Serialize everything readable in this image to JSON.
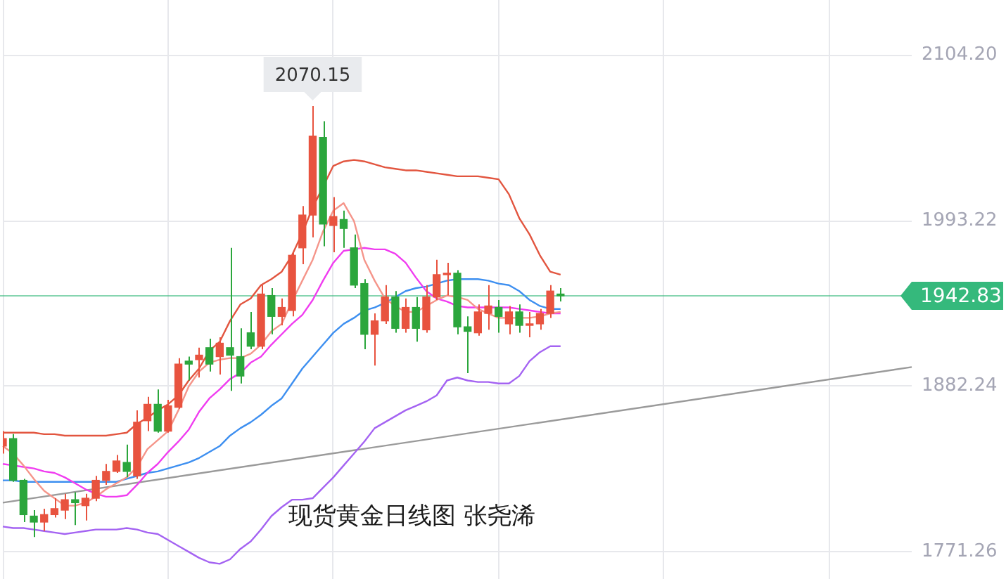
{
  "chart_data": {
    "type": "candlestick",
    "title": "现货黄金日线图 张尧浠",
    "categories": [
      null,
      null,
      null,
      null,
      null,
      null,
      null,
      null,
      null,
      null,
      null,
      null,
      null,
      null,
      null,
      null,
      null,
      null,
      null,
      null,
      null,
      null,
      null,
      null,
      null,
      null,
      null,
      null,
      null,
      null,
      null,
      null,
      null,
      null,
      null,
      null,
      null,
      null,
      null,
      null,
      null,
      null,
      null,
      null,
      null,
      null,
      null,
      null,
      null,
      null,
      null,
      null,
      null,
      null,
      null,
      null,
      null,
      null,
      null,
      null,
      null,
      null,
      null,
      null,
      null,
      null,
      null,
      null,
      null,
      null,
      null,
      null,
      null,
      null,
      null,
      null,
      null,
      null,
      null,
      null,
      null,
      null,
      null,
      null,
      null,
      null,
      null,
      null,
      null
    ],
    "ohlc": [
      [
        1842,
        1852,
        1837,
        1847
      ],
      [
        1847,
        1850,
        1818,
        1819
      ],
      [
        1819,
        1820,
        1791,
        1796
      ],
      [
        1795,
        1799,
        1781,
        1791
      ],
      [
        1791,
        1800,
        1785,
        1796
      ],
      [
        1796,
        1807,
        1794,
        1800
      ],
      [
        1799,
        1810,
        1793,
        1806
      ],
      [
        1806,
        1811,
        1789,
        1804
      ],
      [
        1802,
        1810,
        1792,
        1807
      ],
      [
        1807,
        1822,
        1805,
        1819
      ],
      [
        1819,
        1830,
        1816,
        1825
      ],
      [
        1825,
        1836,
        1824,
        1832
      ],
      [
        1831,
        1843,
        1821,
        1825
      ],
      [
        1822,
        1866,
        1820,
        1858
      ],
      [
        1859,
        1875,
        1852,
        1870
      ],
      [
        1870,
        1880,
        1851,
        1852
      ],
      [
        1852,
        1873,
        1851,
        1869
      ],
      [
        1868,
        1901,
        1867,
        1897
      ],
      [
        1899,
        1902,
        1886,
        1897
      ],
      [
        1900,
        1908,
        1888,
        1903
      ],
      [
        1908,
        1914,
        1892,
        1897
      ],
      [
        1902,
        1915,
        1890,
        1911
      ],
      [
        1908,
        1975,
        1879,
        1903
      ],
      [
        1902,
        1921,
        1884,
        1889
      ],
      [
        1918,
        1932,
        1907,
        1909
      ],
      [
        1909,
        1950,
        1907,
        1944
      ],
      [
        1943,
        1948,
        1917,
        1929
      ],
      [
        1929,
        1941,
        1923,
        1935
      ],
      [
        1933,
        1972,
        1929,
        1970
      ],
      [
        1975,
        2003,
        1964,
        1997
      ],
      [
        1997,
        2070.15,
        1982,
        2050
      ],
      [
        2049,
        2060,
        1976,
        1991
      ],
      [
        1990,
        2009,
        1972,
        1996
      ],
      [
        1994,
        2000,
        1975,
        1988
      ],
      [
        1975,
        1984,
        1948,
        1950
      ],
      [
        1951,
        1954,
        1907,
        1917
      ],
      [
        1917,
        1931,
        1896,
        1926
      ],
      [
        1926,
        1950,
        1924,
        1942
      ],
      [
        1942,
        1946,
        1918,
        1921
      ],
      [
        1921,
        1941,
        1918,
        1935
      ],
      [
        1935,
        1942,
        1912,
        1921
      ],
      [
        1920,
        1950,
        1918,
        1942
      ],
      [
        1942,
        1967,
        1940,
        1957
      ],
      [
        1957,
        1965,
        1943,
        1958
      ],
      [
        1958,
        1960,
        1917,
        1922
      ],
      [
        1922,
        1929,
        1891,
        1919
      ],
      [
        1918,
        1937,
        1916,
        1932
      ],
      [
        1931,
        1950,
        1920,
        1936
      ],
      [
        1935,
        1940,
        1918,
        1929
      ],
      [
        1924,
        1936,
        1917,
        1932
      ],
      [
        1932,
        1937,
        1918,
        1923
      ],
      [
        1923,
        1932,
        1915,
        1924
      ],
      [
        1924,
        1934,
        1920,
        1931
      ],
      [
        1931,
        1950,
        1928,
        1946
      ],
      [
        1944,
        1948,
        1939,
        1942.83
      ],
      null,
      null,
      null,
      null,
      null,
      null,
      null,
      null,
      null,
      null,
      null,
      null,
      null,
      null,
      null,
      null,
      null,
      null,
      null,
      null,
      null,
      null,
      null,
      null,
      null,
      null,
      null,
      null,
      null,
      null,
      null,
      null,
      null,
      null
    ],
    "colors": [
      "#e8533f",
      "#2ba63c",
      "#2ba63c",
      "#2ba63c",
      "#e8533f",
      "#e8533f",
      "#e8533f",
      "#2ba63c",
      "#e8533f",
      "#e8533f",
      "#e8533f",
      "#e8533f",
      "#2ba63c",
      "#e8533f",
      "#e8533f",
      "#2ba63c",
      "#e8533f",
      "#e8533f",
      "#2ba63c",
      "#e8533f",
      "#2ba63c",
      "#e8533f",
      "#2ba63c",
      "#2ba63c",
      "#2ba63c",
      "#e8533f",
      "#2ba63c",
      "#e8533f",
      "#e8533f",
      "#e8533f",
      "#e8533f",
      "#2ba63c",
      "#e8533f",
      "#2ba63c",
      "#2ba63c",
      "#2ba63c",
      "#e8533f",
      "#e8533f",
      "#2ba63c",
      "#e8533f",
      "#2ba63c",
      "#e8533f",
      "#e8533f",
      "#e8533f",
      "#2ba63c",
      "#2ba63c",
      "#e8533f",
      "#e8533f",
      "#2ba63c",
      "#e8533f",
      "#2ba63c",
      "#e8533f",
      "#e8533f",
      "#e8533f",
      "#2ba63c",
      null,
      null,
      null,
      null,
      null,
      null,
      null,
      null,
      null,
      null,
      null,
      null,
      null,
      null,
      null,
      null,
      null,
      null,
      null,
      null,
      null,
      null,
      null,
      null,
      null,
      null,
      null,
      null,
      null,
      null,
      null,
      null,
      null,
      null
    ],
    "series": [
      {
        "type": "line",
        "color": "#e2553f",
        "values": [
          1851,
          1851,
          1851,
          1851,
          1850,
          1850,
          1849,
          1849,
          1849,
          1849,
          1849,
          1850,
          1851,
          1857,
          1861,
          1866,
          1870,
          1876,
          1886,
          1894,
          1906,
          1912,
          1926,
          1937,
          1941,
          1950,
          1954,
          1959,
          1970,
          1985,
          2002,
          null,
          2030,
          2033,
          2034,
          2033,
          2031,
          2029,
          2028,
          2027,
          2027,
          2026,
          2025,
          2024,
          2023,
          2023,
          2023,
          2022,
          2021,
          2011,
          1995,
          1984,
          1970,
          1959,
          1957,
          null,
          null,
          null,
          null,
          null,
          null,
          null,
          null,
          null,
          null,
          null,
          null,
          null,
          null,
          null,
          null,
          null,
          null,
          null,
          null,
          null,
          null,
          null,
          null,
          null,
          null,
          null,
          null,
          null,
          null,
          null,
          null,
          null,
          null
        ]
      },
      {
        "type": "line",
        "color": "#f5958a",
        "values": [
          1842,
          1837,
          1829,
          1820,
          1812,
          1807,
          1802,
          1802,
          1804,
          1808,
          1813,
          1817,
          1821,
          1828,
          1840,
          1846,
          1852,
          1866,
          1882,
          1892,
          1898,
          1900,
          1901,
          1901,
          1904,
          1910,
          1919,
          1924,
          1939,
          1953,
          1967,
          1986,
          2000,
          2005,
          1993,
          1967,
          1953,
          1941,
          1936,
          1932,
          1932,
          1936,
          1940,
          1943,
          1942,
          1940,
          1934,
          1931,
          1928,
          1928,
          1928,
          1928,
          1929,
          1931,
          1932,
          null,
          null,
          null,
          null,
          null,
          null,
          null,
          null,
          null,
          null,
          null,
          null,
          null,
          null,
          null,
          null,
          null,
          null,
          null,
          null,
          null,
          null,
          null,
          null,
          null,
          null,
          null,
          null,
          null,
          null,
          null,
          null,
          null,
          null
        ]
      },
      {
        "type": "line",
        "color": "#f03cf0",
        "values": [
          1830,
          1829,
          1828,
          1827,
          1825,
          1824,
          1821,
          1817,
          1813,
          1810,
          1808,
          1808,
          1809,
          1816,
          1824,
          1830,
          1838,
          1845,
          1853,
          1865,
          1874,
          1880,
          1887,
          1891,
          1898,
          1902,
          1910,
          1917,
          1924,
          1930,
          1940,
          1953,
          1965,
          1973,
          1974,
          1975,
          1974,
          1974,
          1971,
          1965,
          1955,
          1946,
          1941,
          1939,
          1936,
          1935,
          1935,
          1935,
          1935,
          1935,
          1934,
          1933,
          1932,
          1931,
          1931,
          null,
          null,
          null,
          null,
          null,
          null,
          null,
          null,
          null,
          null,
          null,
          null,
          null,
          null,
          null,
          null,
          null,
          null,
          null,
          null,
          null,
          null,
          null,
          null,
          null,
          null,
          null,
          null,
          null,
          null,
          null,
          null,
          null,
          null
        ]
      },
      {
        "type": "line",
        "color": "#3d8ff0",
        "values": [
          1819,
          1819,
          1818,
          1818,
          1818,
          1818,
          1818,
          1818,
          1818,
          1818,
          1818,
          1818,
          1820,
          1822,
          1824,
          1825,
          1827,
          1829,
          1831,
          1834,
          1838,
          1842,
          1849,
          1854,
          1858,
          1863,
          1869,
          1874,
          1884,
          1894,
          1902,
          1910,
          1918,
          1924,
          1928,
          1933,
          1935,
          1938,
          1942,
          1946,
          1948,
          1949,
          1951,
          1953,
          1954,
          1954,
          1954,
          1953,
          1951,
          1950,
          1946,
          1940,
          1936,
          1934,
          1934,
          null,
          null,
          null,
          null,
          null,
          null,
          null,
          null,
          null,
          null,
          null,
          null,
          null,
          null,
          null,
          null,
          null,
          null,
          null,
          null,
          null,
          null,
          null,
          null,
          null,
          null,
          null,
          null,
          null,
          null,
          null,
          null,
          null,
          null
        ]
      },
      {
        "type": "line",
        "color": "#a463f2",
        "values": [
          1788,
          1787,
          1787,
          1786,
          1785,
          1784,
          1783,
          1784,
          1785,
          1786,
          1786,
          1786,
          1787,
          1786,
          1784,
          1783,
          1779,
          1775,
          1771,
          1767,
          1764,
          1763,
          1766,
          1773,
          1778,
          1786,
          1795,
          1801,
          1806,
          1806,
          1807,
          1814,
          1821,
          1829,
          1837,
          1845,
          1854,
          1858,
          1862,
          1866,
          1869,
          1872,
          1876,
          1886,
          1888,
          1886,
          1885,
          1885,
          1884,
          1884,
          1889,
          1899,
          1905,
          1909,
          1909,
          null,
          null,
          null,
          null,
          null,
          null,
          null,
          null,
          null,
          null,
          null,
          null,
          null,
          null,
          null,
          null,
          null,
          null,
          null,
          null,
          null,
          null,
          null,
          null,
          null,
          null,
          null,
          null,
          null,
          null,
          null,
          null,
          null,
          null
        ]
      },
      {
        "type": "line",
        "color": "#9a9a9a",
        "values": [
          1804,
          null,
          null,
          null,
          null,
          null,
          null,
          null,
          null,
          null,
          null,
          null,
          null,
          null,
          null,
          null,
          null,
          null,
          null,
          null,
          null,
          null,
          null,
          null,
          null,
          null,
          null,
          null,
          null,
          null,
          null,
          null,
          null,
          null,
          null,
          null,
          null,
          null,
          null,
          null,
          null,
          null,
          null,
          null,
          null,
          null,
          null,
          null,
          null,
          null,
          null,
          null,
          null,
          null,
          null,
          null,
          null,
          null,
          null,
          null,
          null,
          null,
          null,
          null,
          null,
          null,
          null,
          null,
          null,
          null,
          null,
          null,
          null,
          null,
          null,
          null,
          null,
          null,
          null,
          null,
          null,
          null,
          null,
          null,
          null,
          null,
          null,
          null,
          1895
        ]
      }
    ],
    "ylim": [
      1752.8,
      2141.3
    ],
    "yticks": [
      1771.26,
      1882.24,
      1993.22,
      {
        "value": 2104.2,
        "label": "2104.20"
      }
    ],
    "grid": true,
    "ref_lines": [
      {
        "axis": "y",
        "value": 1942.83,
        "label": "1942.83",
        "color": "#35b97c"
      }
    ],
    "annotations": [
      {
        "text": "2070.15",
        "y": 2070.15
      }
    ]
  }
}
